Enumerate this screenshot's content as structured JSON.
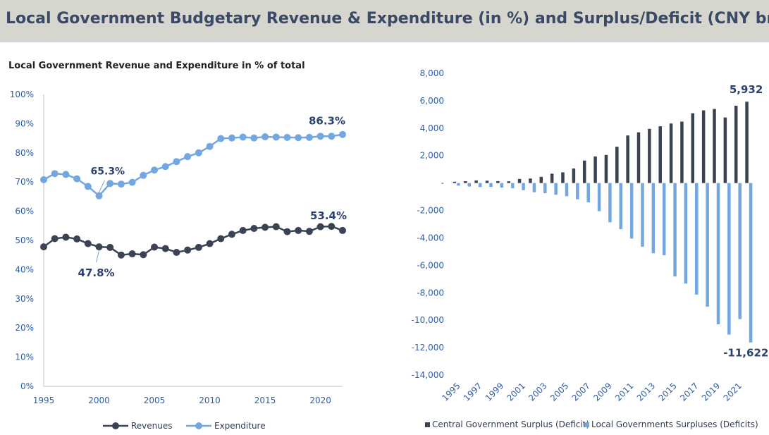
{
  "header": {
    "title": "Local Government Budgetary Revenue & Expenditure (in %) and Surplus/Deficit (CNY bn)"
  },
  "colors": {
    "revenues": "#3b4254",
    "expenditure": "#72a7e0",
    "central": "#3b4254",
    "local": "#72a7e0",
    "annotation": "#2b4170",
    "tick": "#2f5fa8"
  },
  "chart_data": [
    {
      "type": "line",
      "title": "Local Government Revenue and Expenditure in % of total",
      "x": [
        1995,
        1996,
        1997,
        1998,
        1999,
        2000,
        2001,
        2002,
        2003,
        2004,
        2005,
        2006,
        2007,
        2008,
        2009,
        2010,
        2011,
        2012,
        2013,
        2014,
        2015,
        2016,
        2017,
        2018,
        2019,
        2020,
        2021,
        2022
      ],
      "series": [
        {
          "name": "Revenues",
          "values": [
            47.8,
            50.6,
            51.1,
            50.5,
            48.9,
            47.8,
            47.6,
            45.0,
            45.4,
            45.1,
            47.7,
            47.2,
            45.9,
            46.7,
            47.6,
            48.9,
            50.6,
            52.1,
            53.4,
            54.1,
            54.5,
            54.7,
            53.0,
            53.4,
            53.1,
            54.7,
            54.8,
            53.4
          ]
        },
        {
          "name": "Expenditure",
          "values": [
            70.8,
            72.9,
            72.6,
            71.1,
            68.5,
            65.3,
            69.5,
            69.3,
            69.9,
            72.3,
            74.1,
            75.3,
            77.0,
            78.7,
            80.0,
            82.2,
            84.9,
            85.1,
            85.4,
            85.1,
            85.5,
            85.4,
            85.3,
            85.2,
            85.3,
            85.7,
            85.7,
            86.3
          ]
        }
      ],
      "xticks": [
        "1995",
        "2000",
        "2005",
        "2010",
        "2015",
        "2020"
      ],
      "yticks": [
        "0%",
        "10%",
        "20%",
        "30%",
        "40%",
        "50%",
        "60%",
        "70%",
        "80%",
        "90%",
        "100%"
      ],
      "ylim": [
        0,
        100
      ],
      "annotations": [
        {
          "label": "65.3%",
          "series": "Expenditure",
          "x": 2000
        },
        {
          "label": "47.8%",
          "series": "Revenues",
          "x": 2000
        },
        {
          "label": "86.3%",
          "series": "Expenditure",
          "x": 2022
        },
        {
          "label": "53.4%",
          "series": "Revenues",
          "x": 2022
        }
      ],
      "legend": "bottom"
    },
    {
      "type": "bar",
      "categories": [
        "1995",
        "1996",
        "1997",
        "1998",
        "1999",
        "2000",
        "2001",
        "2002",
        "2003",
        "2004",
        "2005",
        "2006",
        "2007",
        "2008",
        "2009",
        "2010",
        "2011",
        "2012",
        "2013",
        "2014",
        "2015",
        "2016",
        "2017",
        "2018",
        "2019",
        "2020",
        "2021",
        "2022"
      ],
      "xticks": [
        "1995",
        "1997",
        "1999",
        "2001",
        "2003",
        "2005",
        "2007",
        "2009",
        "2011",
        "2013",
        "2015",
        "2017",
        "2019",
        "2021"
      ],
      "series": [
        {
          "name": "Central Government Surplus (Deficit)",
          "values": [
            95,
            135,
            190,
            170,
            140,
            130,
            300,
            330,
            450,
            680,
            780,
            1060,
            1640,
            1940,
            2050,
            2650,
            3470,
            3700,
            3950,
            4140,
            4340,
            4480,
            5090,
            5300,
            5400,
            4780,
            5640,
            5932
          ]
        },
        {
          "name": "Local Governments Surpluses (Deficits)",
          "values": [
            -190,
            -255,
            -290,
            -280,
            -330,
            -380,
            -520,
            -670,
            -740,
            -850,
            -960,
            -1180,
            -1400,
            -2050,
            -2860,
            -3360,
            -4050,
            -4640,
            -5120,
            -5260,
            -6810,
            -7330,
            -8130,
            -9010,
            -10300,
            -11050,
            -9920,
            -11622
          ]
        }
      ],
      "yticks": [
        "8,000",
        "6,000",
        "4,000",
        "2,000",
        "-",
        "-2,000",
        "-4,000",
        "-6,000",
        "-8,000",
        "-10,000",
        "-12,000",
        "-14,000"
      ],
      "ylim": [
        -14000,
        8000
      ],
      "annotations": [
        {
          "label": "5,932",
          "series": "Central Government Surplus (Deficit)",
          "x": "2022"
        },
        {
          "label": "-11,622",
          "series": "Local Governments Surpluses (Deficits)",
          "x": "2022"
        }
      ],
      "legend": "bottom"
    }
  ]
}
